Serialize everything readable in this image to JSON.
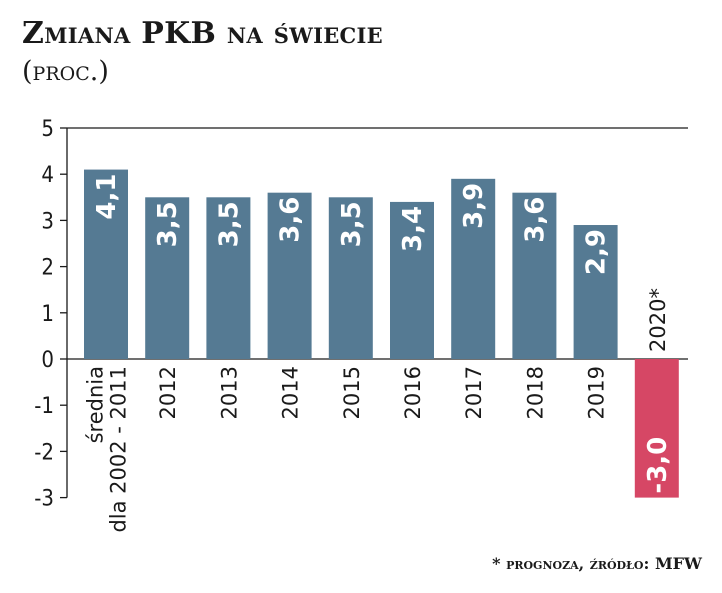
{
  "header": {
    "title": "Zmiana PKB na świecie",
    "subtitle": "(proc.)"
  },
  "chart_data": {
    "type": "bar",
    "title": "Zmiana PKB na świecie",
    "subtitle": "(proc.)",
    "xlabel": "",
    "ylabel": "",
    "ylim": [
      -3,
      5
    ],
    "yticks": [
      "5",
      "4",
      "3",
      "2",
      "1",
      "0",
      "-1",
      "-2",
      "-3"
    ],
    "categories": [
      "średnia dla 2002 - 2011",
      "2012",
      "2013",
      "2014",
      "2015",
      "2016",
      "2017",
      "2018",
      "2019",
      "2020*"
    ],
    "category_lines": [
      [
        "średnia",
        "dla 2002 - 2011"
      ],
      [
        "2012"
      ],
      [
        "2013"
      ],
      [
        "2014"
      ],
      [
        "2015"
      ],
      [
        "2016"
      ],
      [
        "2017"
      ],
      [
        "2018"
      ],
      [
        "2019"
      ],
      [
        "2020*"
      ]
    ],
    "values": [
      4.1,
      3.5,
      3.5,
      3.6,
      3.5,
      3.4,
      3.9,
      3.6,
      2.9,
      -3.0
    ],
    "value_labels": [
      "4,1",
      "3,5",
      "3,5",
      "3,6",
      "3,5",
      "3,4",
      "3,9",
      "3,6",
      "2,9",
      "-3,0"
    ],
    "colors": {
      "positive": "#557a93",
      "negative": "#d64765",
      "axis": "#1a1a1a",
      "label_text": "#ffffff",
      "text": "#1a1a1a"
    },
    "grid": false
  },
  "footer": {
    "source": "* prognoza, źródło: MFW"
  }
}
